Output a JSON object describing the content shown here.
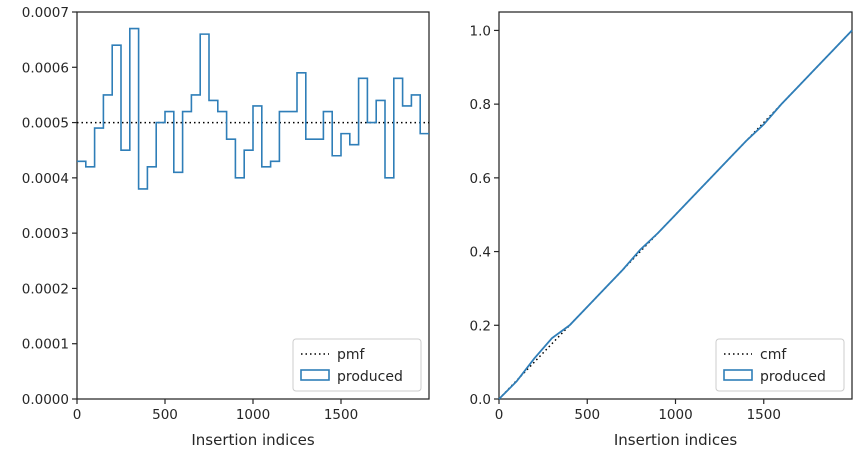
{
  "colors": {
    "histogram": "#2f7eb8",
    "reference": "#000000",
    "axes": "#262626",
    "legend_border": "#cccccc"
  },
  "chart_data": [
    {
      "type": "step",
      "xlabel": "Insertion indices",
      "ylabel": "",
      "xlim": [
        0,
        2000
      ],
      "ylim": [
        0,
        0.0007
      ],
      "xticks": [
        0,
        500,
        1000,
        1500
      ],
      "xtick_labels": [
        "0",
        "500",
        "1000",
        "1500"
      ],
      "yticks": [
        0,
        0.0001,
        0.0002,
        0.0003,
        0.0004,
        0.0005,
        0.0006,
        0.0007
      ],
      "ytick_labels": [
        "0.0000",
        "0.0001",
        "0.0002",
        "0.0003",
        "0.0004",
        "0.0005",
        "0.0006",
        "0.0007"
      ],
      "legend_position": "lower right",
      "legend": [
        "pmf",
        "produced"
      ],
      "reference_line": {
        "name": "pmf",
        "style": "dotted",
        "value": 0.0005
      },
      "series": [
        {
          "name": "produced",
          "bin_width": 50,
          "bin_edges_start": 0,
          "values": [
            0.00043,
            0.00042,
            0.00049,
            0.00055,
            0.00064,
            0.00045,
            0.00067,
            0.00038,
            0.00042,
            0.0005,
            0.00052,
            0.00041,
            0.00052,
            0.00055,
            0.00066,
            0.00054,
            0.00052,
            0.00047,
            0.0004,
            0.00045,
            0.00053,
            0.00042,
            0.00043,
            0.00052,
            0.00052,
            0.00059,
            0.00047,
            0.00047,
            0.00052,
            0.00044,
            0.00048,
            0.00046,
            0.00058,
            0.0005,
            0.00054,
            0.0004,
            0.00058,
            0.00053,
            0.00055,
            0.00048
          ]
        }
      ]
    },
    {
      "type": "line",
      "xlabel": "Insertion indices",
      "ylabel": "",
      "xlim": [
        0,
        2000
      ],
      "ylim": [
        0,
        1.05
      ],
      "xticks": [
        0,
        500,
        1000,
        1500
      ],
      "xtick_labels": [
        "0",
        "500",
        "1000",
        "1500"
      ],
      "yticks": [
        0,
        0.2,
        0.4,
        0.6,
        0.8,
        1.0
      ],
      "ytick_labels": [
        "0.0",
        "0.2",
        "0.4",
        "0.6",
        "0.8",
        "1.0"
      ],
      "legend_position": "lower right",
      "legend": [
        "cmf",
        "produced"
      ],
      "reference_line": {
        "name": "cmf",
        "style": "dotted",
        "x": [
          0,
          2000
        ],
        "y": [
          0,
          1.0
        ]
      },
      "series": [
        {
          "name": "produced",
          "x": [
            0,
            100,
            200,
            300,
            400,
            500,
            600,
            700,
            800,
            900,
            1000,
            1100,
            1200,
            1300,
            1400,
            1500,
            1600,
            1700,
            1800,
            1900,
            2000
          ],
          "y": [
            0,
            0.048,
            0.11,
            0.165,
            0.2,
            0.25,
            0.3,
            0.35,
            0.405,
            0.45,
            0.5,
            0.55,
            0.6,
            0.65,
            0.7,
            0.745,
            0.8,
            0.85,
            0.9,
            0.95,
            1.0
          ]
        }
      ]
    }
  ]
}
